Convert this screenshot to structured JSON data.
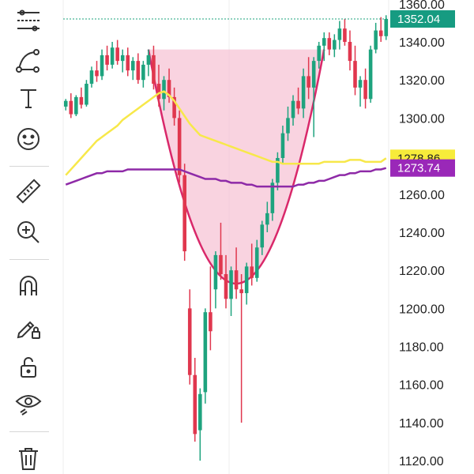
{
  "toolbar": {
    "items": [
      {
        "name": "trend-lines-icon"
      },
      {
        "name": "shapes-icon"
      },
      {
        "name": "text-icon",
        "glyph": "T"
      },
      {
        "name": "emoji-icon"
      },
      {
        "name": "ruler-icon"
      },
      {
        "name": "zoom-in-icon"
      },
      {
        "name": "magnet-icon"
      },
      {
        "name": "pencil-lock-icon"
      },
      {
        "name": "lock-icon"
      },
      {
        "name": "eye-icon"
      },
      {
        "name": "trash-icon"
      }
    ]
  },
  "price_tags": {
    "last_price": {
      "label": "1352.04",
      "value": 1352.04,
      "bg": "#169b81",
      "fg": "#ffffff"
    },
    "ma_yellow": {
      "label": "1278.86",
      "value": 1278.86,
      "bg": "#f7ec3a",
      "fg": "#222222"
    },
    "ma_purple": {
      "label": "1273.74",
      "value": 1273.74,
      "bg": "#9a28b8",
      "fg": "#ffffff"
    }
  },
  "colors": {
    "up": "#1ea37e",
    "down": "#e0374e",
    "ma_yellow": "#f7e84a",
    "ma_purple": "#8e2aa7",
    "cup_fill": "#f7c4d6",
    "cup_line": "#d9286a"
  },
  "chart_data": {
    "type": "candlestick",
    "y_axis": {
      "ticks": [
        "1360.00",
        "1340.00",
        "1320.00",
        "1300.00",
        "1280.00",
        "1260.00",
        "1240.00",
        "1220.00",
        "1200.00",
        "1180.00",
        "1160.00",
        "1140.00",
        "1120.00"
      ],
      "range": [
        1113,
        1362
      ]
    },
    "grid": true,
    "candles": [
      {
        "o": 1306,
        "h": 1310,
        "l": 1304,
        "c": 1309
      },
      {
        "o": 1309,
        "h": 1313,
        "l": 1300,
        "c": 1302
      },
      {
        "o": 1302,
        "h": 1312,
        "l": 1301,
        "c": 1311
      },
      {
        "o": 1311,
        "h": 1316,
        "l": 1305,
        "c": 1307
      },
      {
        "o": 1307,
        "h": 1320,
        "l": 1306,
        "c": 1318
      },
      {
        "o": 1318,
        "h": 1327,
        "l": 1316,
        "c": 1325
      },
      {
        "o": 1325,
        "h": 1330,
        "l": 1319,
        "c": 1322
      },
      {
        "o": 1322,
        "h": 1336,
        "l": 1320,
        "c": 1333
      },
      {
        "o": 1333,
        "h": 1338,
        "l": 1325,
        "c": 1328
      },
      {
        "o": 1328,
        "h": 1340,
        "l": 1326,
        "c": 1337
      },
      {
        "o": 1337,
        "h": 1341,
        "l": 1328,
        "c": 1330
      },
      {
        "o": 1330,
        "h": 1336,
        "l": 1324,
        "c": 1333
      },
      {
        "o": 1333,
        "h": 1337,
        "l": 1322,
        "c": 1325
      },
      {
        "o": 1325,
        "h": 1332,
        "l": 1320,
        "c": 1330
      },
      {
        "o": 1330,
        "h": 1334,
        "l": 1318,
        "c": 1320
      },
      {
        "o": 1320,
        "h": 1330,
        "l": 1316,
        "c": 1328
      },
      {
        "o": 1328,
        "h": 1336,
        "l": 1322,
        "c": 1333
      },
      {
        "o": 1333,
        "h": 1338,
        "l": 1315,
        "c": 1318
      },
      {
        "o": 1318,
        "h": 1328,
        "l": 1306,
        "c": 1310
      },
      {
        "o": 1310,
        "h": 1322,
        "l": 1304,
        "c": 1320
      },
      {
        "o": 1320,
        "h": 1326,
        "l": 1308,
        "c": 1311
      },
      {
        "o": 1311,
        "h": 1316,
        "l": 1296,
        "c": 1300
      },
      {
        "o": 1300,
        "h": 1304,
        "l": 1266,
        "c": 1270
      },
      {
        "o": 1270,
        "h": 1276,
        "l": 1225,
        "c": 1230
      },
      {
        "o": 1200,
        "h": 1210,
        "l": 1160,
        "c": 1165
      },
      {
        "o": 1165,
        "h": 1174,
        "l": 1130,
        "c": 1134
      },
      {
        "o": 1136,
        "h": 1158,
        "l": 1120,
        "c": 1155
      },
      {
        "o": 1156,
        "h": 1200,
        "l": 1150,
        "c": 1198
      },
      {
        "o": 1198,
        "h": 1222,
        "l": 1178,
        "c": 1188
      },
      {
        "o": 1210,
        "h": 1230,
        "l": 1200,
        "c": 1228
      },
      {
        "o": 1228,
        "h": 1245,
        "l": 1215,
        "c": 1218
      },
      {
        "o": 1218,
        "h": 1228,
        "l": 1200,
        "c": 1205
      },
      {
        "o": 1205,
        "h": 1222,
        "l": 1196,
        "c": 1220
      },
      {
        "o": 1220,
        "h": 1232,
        "l": 1205,
        "c": 1210
      },
      {
        "o": 1210,
        "h": 1218,
        "l": 1140,
        "c": 1208
      },
      {
        "o": 1208,
        "h": 1224,
        "l": 1202,
        "c": 1222
      },
      {
        "o": 1222,
        "h": 1234,
        "l": 1212,
        "c": 1216
      },
      {
        "o": 1216,
        "h": 1236,
        "l": 1214,
        "c": 1232
      },
      {
        "o": 1232,
        "h": 1246,
        "l": 1228,
        "c": 1244
      },
      {
        "o": 1244,
        "h": 1256,
        "l": 1240,
        "c": 1250
      },
      {
        "o": 1250,
        "h": 1268,
        "l": 1246,
        "c": 1266
      },
      {
        "o": 1266,
        "h": 1282,
        "l": 1262,
        "c": 1279
      },
      {
        "o": 1279,
        "h": 1296,
        "l": 1276,
        "c": 1292
      },
      {
        "o": 1292,
        "h": 1306,
        "l": 1288,
        "c": 1300
      },
      {
        "o": 1300,
        "h": 1312,
        "l": 1296,
        "c": 1309
      },
      {
        "o": 1309,
        "h": 1316,
        "l": 1302,
        "c": 1305
      },
      {
        "o": 1305,
        "h": 1326,
        "l": 1300,
        "c": 1322
      },
      {
        "o": 1322,
        "h": 1332,
        "l": 1310,
        "c": 1316
      },
      {
        "o": 1316,
        "h": 1332,
        "l": 1290,
        "c": 1330
      },
      {
        "o": 1330,
        "h": 1340,
        "l": 1326,
        "c": 1338
      },
      {
        "o": 1338,
        "h": 1345,
        "l": 1330,
        "c": 1342
      },
      {
        "o": 1342,
        "h": 1345,
        "l": 1333,
        "c": 1336
      },
      {
        "o": 1336,
        "h": 1344,
        "l": 1332,
        "c": 1341
      },
      {
        "o": 1341,
        "h": 1351,
        "l": 1336,
        "c": 1347
      },
      {
        "o": 1347,
        "h": 1352,
        "l": 1338,
        "c": 1340
      },
      {
        "o": 1340,
        "h": 1346,
        "l": 1325,
        "c": 1330
      },
      {
        "o": 1330,
        "h": 1338,
        "l": 1312,
        "c": 1316
      },
      {
        "o": 1316,
        "h": 1322,
        "l": 1306,
        "c": 1320
      },
      {
        "o": 1320,
        "h": 1326,
        "l": 1305,
        "c": 1310
      },
      {
        "o": 1310,
        "h": 1338,
        "l": 1308,
        "c": 1336
      },
      {
        "o": 1336,
        "h": 1350,
        "l": 1334,
        "c": 1346
      },
      {
        "o": 1346,
        "h": 1353,
        "l": 1340,
        "c": 1343
      },
      {
        "o": 1343,
        "h": 1354,
        "l": 1341,
        "c": 1352.04
      }
    ],
    "series": [
      {
        "values": [
          1265,
          1266,
          1267,
          1268,
          1269,
          1270,
          1271,
          1271,
          1272,
          1272,
          1272,
          1272,
          1273,
          1273,
          1273,
          1273,
          1273,
          1273,
          1273,
          1273,
          1273,
          1273,
          1273,
          1272,
          1271,
          1270,
          1269,
          1268,
          1268,
          1268,
          1267,
          1267,
          1266,
          1266,
          1266,
          1265,
          1265,
          1264,
          1264,
          1264,
          1264,
          1264,
          1264,
          1264,
          1264,
          1265,
          1265,
          1266,
          1266,
          1267,
          1267,
          1268,
          1269,
          1270,
          1270,
          1271,
          1271,
          1272,
          1272,
          1272,
          1273,
          1273,
          1273.74
        ]
      },
      {
        "values": [
          1270,
          1273,
          1276,
          1279,
          1282,
          1285,
          1288,
          1290,
          1292,
          1294,
          1296,
          1299,
          1301,
          1303,
          1305,
          1307,
          1309,
          1311,
          1313,
          1314,
          1312,
          1309,
          1305,
          1301,
          1297,
          1294,
          1291,
          1290,
          1289,
          1288,
          1287,
          1286,
          1285,
          1284,
          1283,
          1282,
          1281,
          1280,
          1279,
          1278,
          1277,
          1277,
          1276,
          1276,
          1276,
          1276,
          1276,
          1276,
          1276,
          1276,
          1277,
          1277,
          1277,
          1277,
          1277,
          1278,
          1278,
          1278,
          1277,
          1277,
          1277,
          1277,
          1278.86
        ]
      }
    ],
    "last_price_line": 1352.04,
    "cup_pattern": {
      "top": 1336,
      "bottom": 1213
    }
  }
}
